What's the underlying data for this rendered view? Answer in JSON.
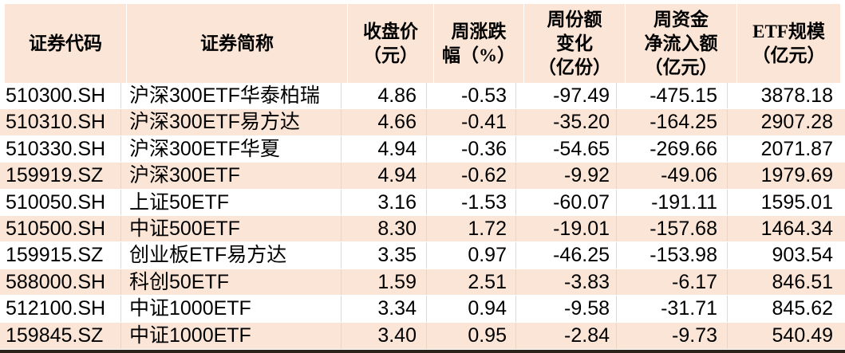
{
  "colors": {
    "header_bg": "#fbe5d6",
    "row_bg": "#ffffff",
    "row_alt_bg": "#fbe5d6",
    "grid_line": "#d9d9d9",
    "bottom_border": "#2c221a",
    "text": "#000000"
  },
  "table": {
    "columns": [
      {
        "key": "code",
        "label": "证券代码"
      },
      {
        "key": "name",
        "label": "证券简称"
      },
      {
        "key": "close",
        "label": "收盘价\n（元）"
      },
      {
        "key": "week-chg",
        "label": "周涨跌\n幅（%）"
      },
      {
        "key": "share-chg",
        "label": "周份额\n变化\n（亿份）"
      },
      {
        "key": "net-inflow",
        "label": "周资金\n净流入额\n（亿元）"
      },
      {
        "key": "etf-scale",
        "label": "ETF规模\n（亿元）"
      }
    ],
    "rows": [
      [
        "510300.SH",
        "沪深300ETF华泰柏瑞",
        "4.86",
        "-0.53",
        "-97.49",
        "-475.15",
        "3878.18"
      ],
      [
        "510310.SH",
        "沪深300ETF易方达",
        "4.66",
        "-0.41",
        "-35.20",
        "-164.25",
        "2907.28"
      ],
      [
        "510330.SH",
        "沪深300ETF华夏",
        "4.94",
        "-0.36",
        "-54.65",
        "-269.66",
        "2071.87"
      ],
      [
        "159919.SZ",
        "沪深300ETF",
        "4.94",
        "-0.62",
        "-9.92",
        "-49.06",
        "1979.69"
      ],
      [
        "510050.SH",
        "上证50ETF",
        "3.16",
        "-1.53",
        "-60.07",
        "-191.11",
        "1595.01"
      ],
      [
        "510500.SH",
        "中证500ETF",
        "8.30",
        "1.72",
        "-19.01",
        "-157.68",
        "1464.34"
      ],
      [
        "159915.SZ",
        "创业板ETF易方达",
        "3.35",
        "0.97",
        "-46.25",
        "-153.98",
        "903.54"
      ],
      [
        "588000.SH",
        "科创50ETF",
        "1.59",
        "2.51",
        "-3.83",
        "-6.17",
        "846.51"
      ],
      [
        "512100.SH",
        "中证1000ETF",
        "3.34",
        "0.94",
        "-9.58",
        "-31.71",
        "845.62"
      ],
      [
        "159845.SZ",
        "中证1000ETF",
        "3.40",
        "0.95",
        "-2.84",
        "-9.73",
        "540.49"
      ]
    ]
  },
  "chart_data": {
    "type": "table",
    "title": "",
    "columns": [
      "证券代码",
      "证券简称",
      "收盘价（元）",
      "周涨跌幅（%）",
      "周份额变化（亿份）",
      "周资金净流入额（亿元）",
      "ETF规模（亿元）"
    ],
    "rows": [
      [
        "510300.SH",
        "沪深300ETF华泰柏瑞",
        4.86,
        -0.53,
        -97.49,
        -475.15,
        3878.18
      ],
      [
        "510310.SH",
        "沪深300ETF易方达",
        4.66,
        -0.41,
        -35.2,
        -164.25,
        2907.28
      ],
      [
        "510330.SH",
        "沪深300ETF华夏",
        4.94,
        -0.36,
        -54.65,
        -269.66,
        2071.87
      ],
      [
        "159919.SZ",
        "沪深300ETF",
        4.94,
        -0.62,
        -9.92,
        -49.06,
        1979.69
      ],
      [
        "510050.SH",
        "上证50ETF",
        3.16,
        -1.53,
        -60.07,
        -191.11,
        1595.01
      ],
      [
        "510500.SH",
        "中证500ETF",
        8.3,
        1.72,
        -19.01,
        -157.68,
        1464.34
      ],
      [
        "159915.SZ",
        "创业板ETF易方达",
        3.35,
        0.97,
        -46.25,
        -153.98,
        903.54
      ],
      [
        "588000.SH",
        "科创50ETF",
        1.59,
        2.51,
        -3.83,
        -6.17,
        846.51
      ],
      [
        "512100.SH",
        "中证1000ETF",
        3.34,
        0.94,
        -9.58,
        -31.71,
        845.62
      ],
      [
        "159845.SZ",
        "中证1000ETF",
        3.4,
        0.95,
        -2.84,
        -9.73,
        540.49
      ]
    ]
  }
}
